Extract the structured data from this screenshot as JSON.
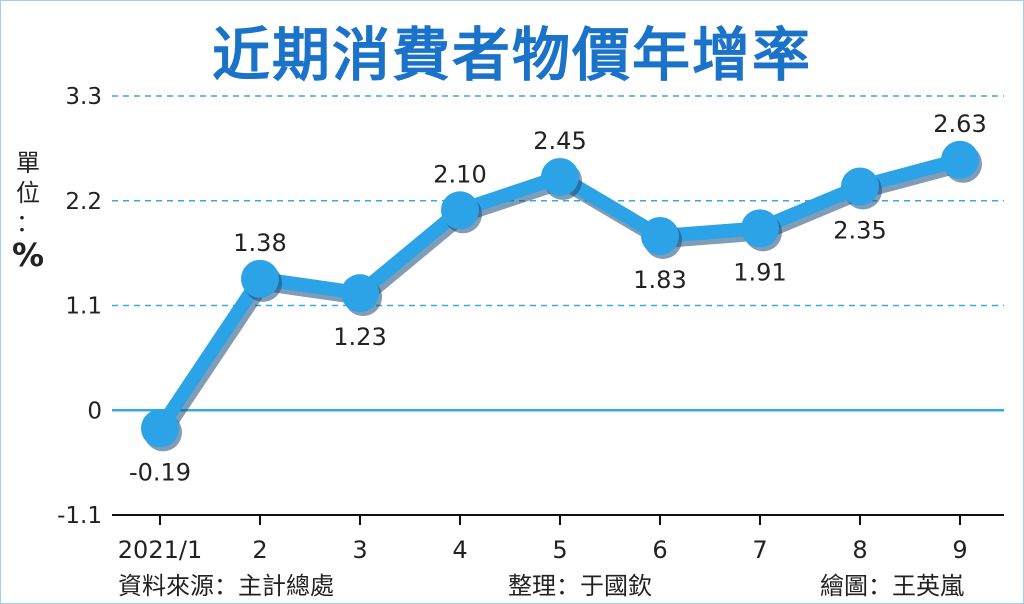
{
  "chart_data": {
    "type": "line",
    "title": "近期消費者物價年增率",
    "ylabel": "單位：%",
    "categories": [
      "2021/1",
      "2",
      "3",
      "4",
      "5",
      "6",
      "7",
      "8",
      "9"
    ],
    "values": [
      -0.19,
      1.38,
      1.23,
      2.1,
      2.45,
      1.83,
      1.91,
      2.35,
      2.63
    ],
    "value_labels": [
      "-0.19",
      "1.38",
      "1.23",
      "2.10",
      "2.45",
      "1.83",
      "1.91",
      "2.35",
      "2.63"
    ],
    "label_position": [
      "below",
      "above",
      "below",
      "above",
      "above",
      "below",
      "below",
      "below",
      "above"
    ],
    "yticks": [
      "3.3",
      "2.2",
      "1.1",
      "0",
      "-1.1"
    ],
    "ytick_values": [
      3.3,
      2.2,
      1.1,
      0,
      -1.1
    ],
    "ylim": [
      -1.1,
      3.3
    ],
    "grid": "horizontal dashed",
    "colors": {
      "line": "#2ba3e6",
      "shadow": "#1a4a7a",
      "grid": "#39a9dc",
      "title": "#1a73c8"
    }
  },
  "unit_label": {
    "chars": [
      "單",
      "位",
      "："
    ],
    "percent": "%"
  },
  "footer": {
    "source": "資料來源：主計總處",
    "editor": "整理：于國欽",
    "artist": "繪圖：王英嵐"
  }
}
